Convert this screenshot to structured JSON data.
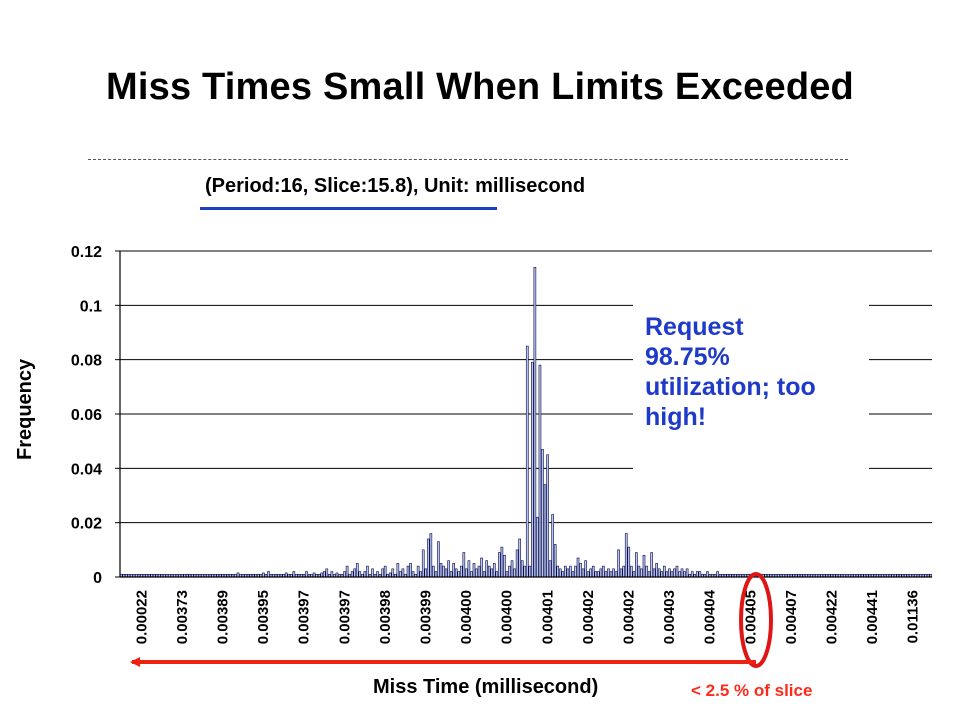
{
  "slide": {
    "title": "Miss Times Small When Limits Exceeded",
    "callout_lines": [
      "Request",
      "98.75%",
      "utilization; too",
      "high!"
    ],
    "annotation": "< 2.5 % of slice"
  },
  "colors": {
    "bar_fill": "#b9c6ec",
    "bar_stroke": "#0a0a4a",
    "callout_text": "#1f3ac9",
    "subtitle_underline": "#1a3fbf",
    "arrow": "#ee2211"
  },
  "chart_data": {
    "type": "bar",
    "title": "(Period:16, Slice:15.8), Unit: millisecond",
    "xlabel": "Miss Time (millisecond)",
    "ylabel": "Frequency",
    "ylim": [
      0,
      0.12
    ],
    "yticks": [
      "0",
      "0.02",
      "0.04",
      "0.06",
      "0.08",
      "0.1",
      "0.12"
    ],
    "grid": "horizontal",
    "x_tick_labels": [
      "0.00022",
      "0.00373",
      "0.00389",
      "0.00395",
      "0.00397",
      "0.00397",
      "0.00398",
      "0.00399",
      "0.00400",
      "0.00400",
      "0.00401",
      "0.00402",
      "0.00402",
      "0.00403",
      "0.00404",
      "0.00405",
      "0.00407",
      "0.00422",
      "0.00441",
      "0.01136"
    ],
    "values": [
      0.001,
      0.001,
      0.001,
      0.001,
      0.001,
      0.001,
      0.001,
      0.001,
      0.001,
      0.001,
      0.001,
      0.001,
      0.001,
      0.001,
      0.001,
      0.001,
      0.001,
      0.001,
      0.001,
      0.001,
      0.001,
      0.001,
      0.001,
      0.001,
      0.001,
      0.001,
      0.001,
      0.001,
      0.001,
      0.001,
      0.001,
      0.001,
      0.001,
      0.001,
      0.001,
      0.001,
      0.001,
      0.001,
      0.001,
      0.001,
      0.001,
      0.001,
      0.001,
      0.001,
      0.001,
      0.001,
      0.0015,
      0.001,
      0.001,
      0.001,
      0.001,
      0.001,
      0.001,
      0.001,
      0.001,
      0.001,
      0.0015,
      0.001,
      0.002,
      0.001,
      0.001,
      0.001,
      0.001,
      0.001,
      0.001,
      0.0015,
      0.001,
      0.001,
      0.002,
      0.001,
      0.001,
      0.001,
      0.001,
      0.002,
      0.001,
      0.001,
      0.0015,
      0.001,
      0.001,
      0.0015,
      0.002,
      0.003,
      0.001,
      0.002,
      0.001,
      0.0015,
      0.001,
      0.001,
      0.002,
      0.004,
      0.001,
      0.002,
      0.003,
      0.005,
      0.002,
      0.001,
      0.002,
      0.004,
      0.001,
      0.003,
      0.001,
      0.002,
      0.001,
      0.003,
      0.004,
      0.001,
      0.0015,
      0.003,
      0.001,
      0.005,
      0.002,
      0.003,
      0.001,
      0.004,
      0.005,
      0.002,
      0.001,
      0.004,
      0.002,
      0.01,
      0.003,
      0.014,
      0.016,
      0.004,
      0.002,
      0.013,
      0.005,
      0.004,
      0.003,
      0.006,
      0.002,
      0.005,
      0.003,
      0.002,
      0.004,
      0.009,
      0.003,
      0.006,
      0.002,
      0.005,
      0.003,
      0.004,
      0.007,
      0.002,
      0.006,
      0.004,
      0.003,
      0.005,
      0.002,
      0.009,
      0.011,
      0.008,
      0.002,
      0.004,
      0.006,
      0.003,
      0.01,
      0.014,
      0.006,
      0.004,
      0.085,
      0.004,
      0.079,
      0.114,
      0.022,
      0.078,
      0.047,
      0.034,
      0.045,
      0.006,
      0.023,
      0.012,
      0.004,
      0.003,
      0.002,
      0.004,
      0.003,
      0.004,
      0.002,
      0.004,
      0.007,
      0.005,
      0.003,
      0.006,
      0.002,
      0.003,
      0.004,
      0.002,
      0.002,
      0.003,
      0.004,
      0.002,
      0.003,
      0.002,
      0.003,
      0.002,
      0.01,
      0.003,
      0.004,
      0.016,
      0.011,
      0.004,
      0.002,
      0.009,
      0.004,
      0.003,
      0.008,
      0.004,
      0.002,
      0.009,
      0.003,
      0.005,
      0.003,
      0.002,
      0.004,
      0.002,
      0.003,
      0.002,
      0.003,
      0.004,
      0.002,
      0.003,
      0.002,
      0.003,
      0.001,
      0.002,
      0.001,
      0.002,
      0.002,
      0.001,
      0.001,
      0.002,
      0.001,
      0.001,
      0.001,
      0.002,
      0.001,
      0.001,
      0.001,
      0.001,
      0.001,
      0.001,
      0.001,
      0.001,
      0.001,
      0.001,
      0.001,
      0.001,
      0.001,
      0.001,
      0.001,
      0.001,
      0.001,
      0.001,
      0.001,
      0.001,
      0.001,
      0.001,
      0.001,
      0.001,
      0.001,
      0.001,
      0.001,
      0.001,
      0.001,
      0.001,
      0.001,
      0.001,
      0.001,
      0.001,
      0.001,
      0.001,
      0.001,
      0.001,
      0.001,
      0.001,
      0.001,
      0.001,
      0.001,
      0.001,
      0.001,
      0.001,
      0.001,
      0.001,
      0.001,
      0.001,
      0.001,
      0.001,
      0.001,
      0.001,
      0.001,
      0.001,
      0.001,
      0.001,
      0.001,
      0.001,
      0.001,
      0.001,
      0.001,
      0.001,
      0.001,
      0.001,
      0.001,
      0.001,
      0.001,
      0.001,
      0.001,
      0.001,
      0.001,
      0.001,
      0.001,
      0.001,
      0.001,
      0.001,
      0.001,
      0.001,
      0.001,
      0.001,
      0.001,
      0.001
    ]
  }
}
